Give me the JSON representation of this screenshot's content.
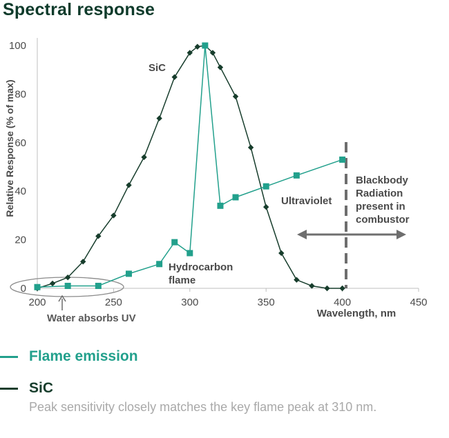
{
  "title": "Spectral response",
  "colors": {
    "sic": "#173d2c",
    "flame": "#22a08c",
    "annotation": "#6b6b6b",
    "text": "#4a4a4a",
    "title": "#0f3b2b"
  },
  "chart_data": {
    "type": "line",
    "xlabel": "Wavelength, nm",
    "ylabel": "Relative Response (% of max)",
    "xlim": [
      200,
      450
    ],
    "ylim": [
      0,
      100
    ],
    "xticks": [
      "200",
      "250",
      "300",
      "350",
      "400",
      "450"
    ],
    "yticks": [
      "0",
      "20",
      "40",
      "60",
      "80",
      "100"
    ],
    "grid": false,
    "series": [
      {
        "name": "SiC",
        "marker": "diamond",
        "x": [
          200,
          210,
          220,
          230,
          240,
          250,
          260,
          270,
          280,
          290,
          300,
          305,
          310,
          315,
          320,
          330,
          340,
          350,
          360,
          370,
          380,
          390,
          400
        ],
        "y": [
          0,
          2,
          4.5,
          11,
          21.5,
          30,
          42.5,
          54,
          70,
          87,
          97,
          99.5,
          100,
          97,
          91,
          79,
          58,
          33.5,
          14.5,
          3.5,
          1,
          0,
          0
        ]
      },
      {
        "name": "Flame emission",
        "marker": "square",
        "x": [
          200,
          220,
          240,
          260,
          280,
          290,
          300,
          310,
          320,
          330,
          350,
          370,
          400
        ],
        "y": [
          0.5,
          1,
          1,
          6,
          10,
          19,
          14.5,
          100,
          34,
          37.5,
          42,
          46.5,
          53
        ]
      }
    ],
    "annotations": {
      "sic_label": "SiC",
      "hydrocarbon_line1": "Hydrocarbon",
      "hydrocarbon_line2": "flame",
      "ultraviolet": "Ultraviolet",
      "blackbody_line1": "Blackbody",
      "blackbody_line2": "Radiation",
      "blackbody_line3": "present in",
      "blackbody_line4": "combustor",
      "water": "Water absorbs UV"
    }
  },
  "legend": {
    "flame_label": "Flame emission",
    "sic_label": "SiC",
    "sic_description": "Peak sensitivity closely matches the key flame peak at 310 nm."
  }
}
